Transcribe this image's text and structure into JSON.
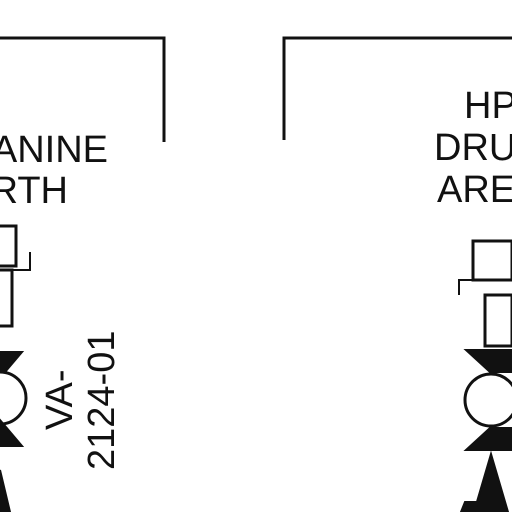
{
  "diagram": {
    "left_area": {
      "label_lines": [
        "ANINE",
        "RTH"
      ],
      "valve_tag_lines": [
        "VA-",
        "2124-01"
      ]
    },
    "right_area": {
      "label_lines": [
        "HP",
        "DRU",
        "ARE"
      ]
    },
    "colors": {
      "ink": "#111111",
      "background": "#ffffff"
    }
  }
}
